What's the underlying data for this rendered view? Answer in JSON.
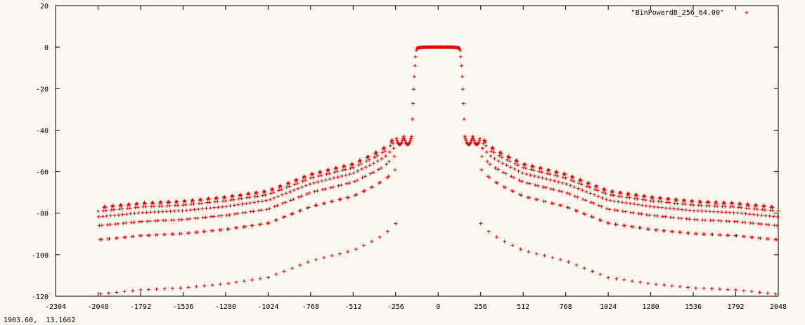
{
  "window": {
    "status_readout": "1903.60,  13.1662"
  },
  "colors": {
    "background": "#fbf8ef",
    "axis": "#000000",
    "series": "#e00000"
  },
  "chart_data": {
    "type": "scatter",
    "title": "",
    "xlabel": "",
    "ylabel": "",
    "xlim": [
      -2304,
      2048
    ],
    "ylim": [
      -120,
      20
    ],
    "x_ticks": [
      -2304,
      -2048,
      -1792,
      -1536,
      -1280,
      -1024,
      -768,
      -512,
      -256,
      0,
      256,
      512,
      768,
      1024,
      1280,
      1536,
      1792,
      2048
    ],
    "x_tick_labels": [
      "-2304",
      "-2048",
      "-1792",
      "-1536",
      "-1280",
      "-1024",
      "-768",
      "-512",
      "-256",
      "0",
      "256",
      "512",
      "768",
      "1024",
      "1280",
      "1536",
      "1792",
      "2048"
    ],
    "y_ticks": [
      20,
      0,
      -20,
      -40,
      -60,
      -80,
      -100,
      -120
    ],
    "y_tick_labels": [
      "20",
      "0",
      "-20",
      "-40",
      "-60",
      "-80",
      "-100",
      "-120"
    ],
    "grid": false,
    "legend_position": "top-right",
    "series": [
      {
        "name": "\"BinPowerdB_256_64.00\"",
        "marker": "+",
        "color": "#e00000",
        "x_range": [
          -2048,
          2048
        ],
        "passband": {
          "x": [
            -128,
            128
          ],
          "y": 0
        },
        "transition_edge": {
          "x": [
            -160,
            160
          ],
          "y": -43
        },
        "sidelobe_envelope": [
          {
            "x": 256,
            "y": -43
          },
          {
            "x": 320,
            "y": -48
          },
          {
            "x": 384,
            "y": -51
          },
          {
            "x": 512,
            "y": -56
          },
          {
            "x": 768,
            "y": -61
          },
          {
            "x": 1024,
            "y": -69
          },
          {
            "x": 1280,
            "y": -72
          },
          {
            "x": 1536,
            "y": -74
          },
          {
            "x": 1792,
            "y": -75
          },
          {
            "x": 2048,
            "y": -77
          }
        ],
        "sidelobe_period": 48,
        "null_floor": -120
      }
    ]
  }
}
